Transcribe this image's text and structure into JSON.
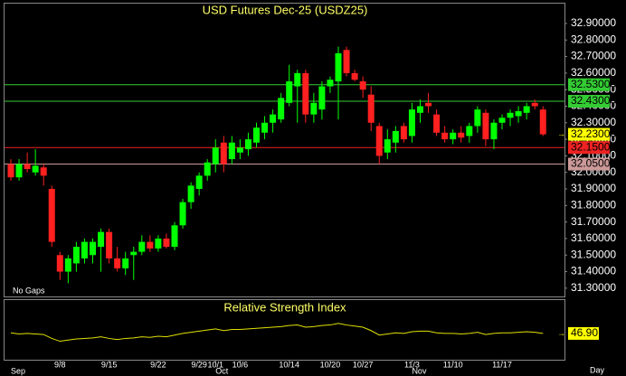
{
  "chart_data": [
    {
      "type": "candlestick",
      "title": "USD Futures Dec-25 (USDZ25)",
      "note": "No Gaps",
      "x_unit_label": "Day",
      "categories": [
        null,
        null,
        null,
        null,
        null,
        null,
        "9/8",
        null,
        null,
        null,
        null,
        null,
        "9/15",
        null,
        null,
        null,
        null,
        null,
        "9/22",
        null,
        null,
        null,
        null,
        "9/29",
        null,
        "10/1",
        null,
        null,
        "10/6",
        null,
        null,
        null,
        null,
        null,
        "10/14",
        null,
        null,
        null,
        null,
        "10/20",
        null,
        null,
        null,
        "10/27",
        null,
        null,
        null,
        null,
        null,
        "11/3",
        null,
        null,
        null,
        null,
        "11/10",
        null,
        null,
        null,
        null,
        null,
        "11/17",
        null,
        null,
        null,
        null,
        null
      ],
      "month_labels": [
        "Sep",
        null,
        null,
        null,
        null,
        null,
        null,
        null,
        null,
        null,
        null,
        null,
        null,
        null,
        null,
        null,
        null,
        null,
        null,
        null,
        null,
        null,
        null,
        null,
        null,
        "Oct",
        null,
        null,
        null,
        null,
        null,
        null,
        null,
        null,
        null,
        null,
        null,
        null,
        null,
        null,
        null,
        null,
        null,
        null,
        null,
        null,
        null,
        null,
        null,
        "Nov",
        null,
        null,
        null,
        null,
        null,
        null,
        null,
        null,
        null,
        null,
        null,
        null,
        null,
        null,
        null,
        null
      ],
      "open": [
        32.05,
        31.97,
        32.05,
        32.0,
        32.03,
        31.9,
        31.5,
        31.4,
        31.45,
        31.48,
        31.5,
        31.55,
        31.64,
        31.48,
        31.42,
        31.5,
        31.52,
        31.58,
        31.54,
        31.6,
        31.55,
        31.68,
        31.82,
        31.9,
        31.98,
        32.05,
        32.18,
        32.08,
        32.12,
        32.14,
        32.18,
        32.24,
        32.3,
        32.32,
        32.42,
        32.52,
        32.6,
        32.35,
        32.38,
        32.52,
        32.55,
        32.74,
        32.6,
        32.55,
        32.47,
        32.28,
        32.12,
        32.18,
        32.28,
        32.22,
        32.36,
        32.42,
        32.35,
        32.24,
        32.2,
        32.24,
        32.22,
        32.28,
        32.36,
        32.2,
        32.3,
        32.33,
        32.34,
        32.36,
        32.42,
        32.38
      ],
      "high": [
        32.08,
        32.08,
        32.12,
        32.14,
        32.05,
        31.92,
        31.52,
        31.5,
        31.58,
        31.6,
        31.6,
        31.66,
        31.66,
        31.55,
        31.52,
        31.55,
        31.62,
        31.62,
        31.62,
        31.63,
        31.7,
        31.84,
        31.94,
        32.0,
        32.08,
        32.2,
        32.22,
        32.22,
        32.2,
        32.24,
        32.3,
        32.34,
        32.38,
        32.48,
        32.65,
        32.62,
        32.62,
        32.48,
        32.55,
        32.58,
        32.76,
        32.76,
        32.62,
        32.58,
        32.52,
        32.3,
        32.26,
        32.28,
        32.3,
        32.42,
        32.44,
        32.48,
        32.38,
        32.28,
        32.26,
        32.28,
        32.3,
        32.4,
        32.38,
        32.32,
        32.35,
        32.38,
        32.4,
        32.42,
        32.44,
        32.4
      ],
      "low": [
        31.95,
        31.95,
        32.0,
        31.98,
        31.92,
        31.55,
        31.35,
        31.33,
        31.4,
        31.45,
        31.45,
        31.4,
        31.45,
        31.4,
        31.38,
        31.35,
        31.5,
        31.52,
        31.52,
        31.54,
        31.53,
        31.66,
        31.78,
        31.86,
        31.95,
        32.0,
        32.0,
        32.05,
        32.08,
        32.1,
        32.15,
        32.2,
        32.24,
        32.3,
        32.4,
        32.3,
        32.3,
        32.3,
        32.32,
        32.48,
        32.32,
        32.58,
        32.55,
        32.45,
        32.25,
        32.05,
        32.08,
        32.12,
        32.18,
        32.18,
        32.3,
        32.36,
        32.22,
        32.18,
        32.17,
        32.18,
        32.18,
        32.24,
        32.16,
        32.14,
        32.26,
        32.28,
        32.3,
        32.32,
        32.38,
        32.22
      ],
      "close": [
        31.97,
        32.05,
        32.02,
        32.04,
        31.98,
        31.58,
        31.4,
        31.48,
        31.55,
        31.58,
        31.58,
        31.64,
        31.48,
        31.42,
        31.48,
        31.52,
        31.58,
        31.54,
        31.6,
        31.55,
        31.68,
        31.82,
        31.92,
        31.98,
        32.06,
        32.15,
        32.05,
        32.18,
        32.15,
        32.2,
        32.27,
        32.3,
        32.35,
        32.45,
        32.55,
        32.6,
        32.35,
        32.42,
        32.52,
        32.56,
        32.72,
        32.6,
        32.56,
        32.5,
        32.3,
        32.1,
        32.2,
        32.25,
        32.2,
        32.38,
        32.4,
        32.4,
        32.24,
        32.2,
        32.24,
        32.21,
        32.28,
        32.38,
        32.2,
        32.3,
        32.33,
        32.36,
        32.37,
        32.4,
        32.4,
        32.23
      ],
      "up_color": "#00ff00",
      "down_color": "#ff2020",
      "ylim": [
        31.25,
        33.02
      ],
      "yticks": [
        {
          "value": 31.3,
          "label": "31.30000"
        },
        {
          "value": 31.4,
          "label": "31.40000"
        },
        {
          "value": 31.5,
          "label": "31.50000"
        },
        {
          "value": 31.6,
          "label": "31.60000"
        },
        {
          "value": 31.7,
          "label": "31.70000"
        },
        {
          "value": 31.8,
          "label": "31.80000"
        },
        {
          "value": 31.9,
          "label": "31.90000"
        },
        {
          "value": 32.0,
          "label": "32.00000"
        },
        {
          "value": 32.1,
          "label": "32.10000"
        },
        {
          "value": 32.2,
          "label": "32.20000"
        },
        {
          "value": 32.3,
          "label": "32.30000"
        },
        {
          "value": 32.4,
          "label": "32.40000"
        },
        {
          "value": 32.5,
          "label": "32.50000"
        },
        {
          "value": 32.6,
          "label": "32.60000"
        },
        {
          "value": 32.7,
          "label": "32.70000"
        },
        {
          "value": 32.8,
          "label": "32.80000"
        },
        {
          "value": 32.9,
          "label": "32.90000"
        }
      ],
      "hlines": [
        {
          "value": 32.53,
          "label": "32.53000",
          "color": "#33cc33"
        },
        {
          "value": 32.43,
          "label": "32.43000",
          "color": "#33cc33"
        },
        {
          "value": 32.15,
          "label": "32.15000",
          "color": "#ee2222"
        },
        {
          "value": 32.05,
          "label": "32.05000",
          "color": "#cc9999"
        }
      ],
      "last_price": {
        "value": 32.23,
        "label": "32.23000",
        "color": "#ffff00"
      }
    },
    {
      "type": "line",
      "title": "Relative Strength Index",
      "color": "#e0e000",
      "values": [
        48,
        46,
        47,
        46,
        45,
        38,
        33,
        35,
        37,
        38,
        39,
        41,
        38,
        36,
        38,
        39,
        41,
        40,
        42,
        41,
        44,
        47,
        49,
        51,
        53,
        55,
        52,
        54,
        54,
        55,
        56,
        57,
        58,
        59,
        61,
        62,
        58,
        59,
        61,
        62,
        65,
        62,
        60,
        58,
        52,
        44,
        46,
        48,
        47,
        50,
        51,
        51,
        48,
        47,
        47,
        46,
        47,
        49,
        45,
        47,
        48,
        48,
        49,
        50,
        49,
        46.9
      ],
      "ylim": [
        0,
        100
      ],
      "last_value": {
        "value": 46.9,
        "label": "46.90"
      }
    }
  ]
}
